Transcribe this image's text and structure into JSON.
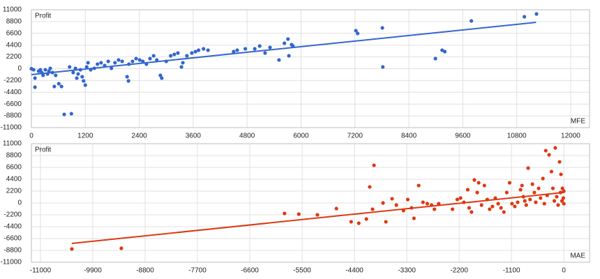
{
  "chart_data": [
    {
      "type": "scatter",
      "ylabel": "Profit",
      "xlabel": "MFE",
      "color": "#3366cc",
      "grid": true,
      "xlim": [
        0,
        12420
      ],
      "ylim": [
        -11000,
        11000
      ],
      "xticks": [
        0,
        1200,
        2400,
        3600,
        4800,
        6000,
        7200,
        8400,
        9600,
        10800,
        12000
      ],
      "yticks": [
        -11000,
        -8800,
        -6600,
        -4400,
        -2200,
        0,
        2200,
        4400,
        6600,
        8800,
        11000
      ],
      "x": [
        0,
        50,
        80,
        80,
        160,
        200,
        230,
        260,
        310,
        360,
        390,
        420,
        470,
        510,
        540,
        610,
        670,
        730,
        850,
        890,
        930,
        980,
        1010,
        1040,
        1090,
        1130,
        1160,
        1200,
        1230,
        1260,
        1320,
        1400,
        1470,
        1550,
        1630,
        1710,
        1780,
        1860,
        1940,
        2020,
        2130,
        2160,
        2170,
        2250,
        2330,
        2410,
        2480,
        2560,
        2640,
        2720,
        2790,
        2870,
        2900,
        3000,
        3100,
        3180,
        3260,
        3340,
        3370,
        3460,
        3570,
        3650,
        3720,
        3830,
        3930,
        4500,
        4580,
        4760,
        4970,
        5080,
        5200,
        5310,
        5510,
        5630,
        5710,
        5730,
        5790,
        5820,
        7220,
        7260,
        7810,
        7820,
        8990,
        9140,
        9200,
        9790,
        10970,
        11240
      ],
      "values": [
        0,
        -200,
        -1760,
        -3450,
        -460,
        -200,
        -720,
        -1240,
        -200,
        -980,
        -460,
        70,
        -720,
        -3320,
        -1240,
        -2800,
        -3320,
        -8530,
        330,
        -8400,
        -720,
        70,
        -1760,
        -980,
        -200,
        -1500,
        -2280,
        -3060,
        330,
        1110,
        -200,
        70,
        850,
        1110,
        590,
        1370,
        70,
        1110,
        1630,
        1370,
        -1500,
        -2280,
        850,
        1370,
        1890,
        1630,
        1370,
        850,
        1890,
        2410,
        1630,
        -1240,
        -1760,
        1370,
        2410,
        2670,
        2930,
        330,
        1110,
        2410,
        2930,
        3190,
        3450,
        3710,
        3450,
        3190,
        3450,
        3710,
        3710,
        4230,
        2930,
        3970,
        1630,
        4750,
        5530,
        2410,
        4490,
        4230,
        7100,
        6580,
        7620,
        330,
        1890,
        3450,
        3190,
        8920,
        9700,
        10220
      ],
      "trendline": {
        "x": [
          0,
          11230
        ],
        "values": [
          -1100,
          8650
        ]
      }
    },
    {
      "type": "scatter",
      "ylabel": "Profit",
      "xlabel": "MAE",
      "color": "#dc3912",
      "grid": true,
      "xlim": [
        -11190,
        540
      ],
      "ylim": [
        -11000,
        11000
      ],
      "xticks": [
        -11000,
        -9900,
        -8800,
        -7700,
        -6600,
        -5500,
        -4400,
        -3300,
        -2200,
        -1100,
        0
      ],
      "yticks": [
        -11000,
        -8800,
        -6600,
        -4400,
        -2200,
        0,
        2200,
        4400,
        6600,
        8800,
        11000
      ],
      "x": [
        -10340,
        -9300,
        -5870,
        -5570,
        -5180,
        -4780,
        -4470,
        -4310,
        -4150,
        -4080,
        -4020,
        -3990,
        -3800,
        -3740,
        -3610,
        -3520,
        -3370,
        -3280,
        -3200,
        -3150,
        -3050,
        -2960,
        -2870,
        -2780,
        -2720,
        -2630,
        -2340,
        -2240,
        -2170,
        -2100,
        -2020,
        -1990,
        -1940,
        -1880,
        -1820,
        -1790,
        -1730,
        -1670,
        -1610,
        -1560,
        -1500,
        -1440,
        -1380,
        -1320,
        -1260,
        -1200,
        -1140,
        -1090,
        -1030,
        -970,
        -910,
        -880,
        -850,
        -820,
        -790,
        -750,
        -710,
        -660,
        -620,
        -590,
        -530,
        -490,
        -440,
        -410,
        -380,
        -350,
        -310,
        -260,
        -230,
        -200,
        -180,
        -150,
        -120,
        -90,
        -70,
        -60,
        -40,
        -30,
        -10,
        0,
        0
      ],
      "values": [
        -8540,
        -8410,
        -1940,
        -2070,
        -2200,
        -1040,
        -3490,
        -3750,
        -2980,
        2980,
        -1160,
        6990,
        0,
        -3490,
        780,
        -390,
        -1420,
        650,
        -910,
        -2850,
        3240,
        130,
        -130,
        -390,
        -1160,
        -130,
        -1160,
        650,
        910,
        130,
        2460,
        -910,
        -1680,
        4270,
        1940,
        3750,
        -390,
        3240,
        650,
        -1160,
        -650,
        910,
        -130,
        -910,
        -1680,
        1940,
        3750,
        -130,
        -650,
        130,
        2460,
        3240,
        1160,
        390,
        -390,
        6470,
        650,
        3490,
        1940,
        130,
        2720,
        910,
        4530,
        -130,
        9710,
        1420,
        8930,
        5820,
        2720,
        390,
        10220,
        1160,
        -390,
        7630,
        1940,
        5310,
        390,
        2720,
        910,
        2200,
        -130
      ],
      "trendline": {
        "x": [
          -10340,
          0
        ],
        "values": [
          -7500,
          1950
        ]
      }
    }
  ]
}
